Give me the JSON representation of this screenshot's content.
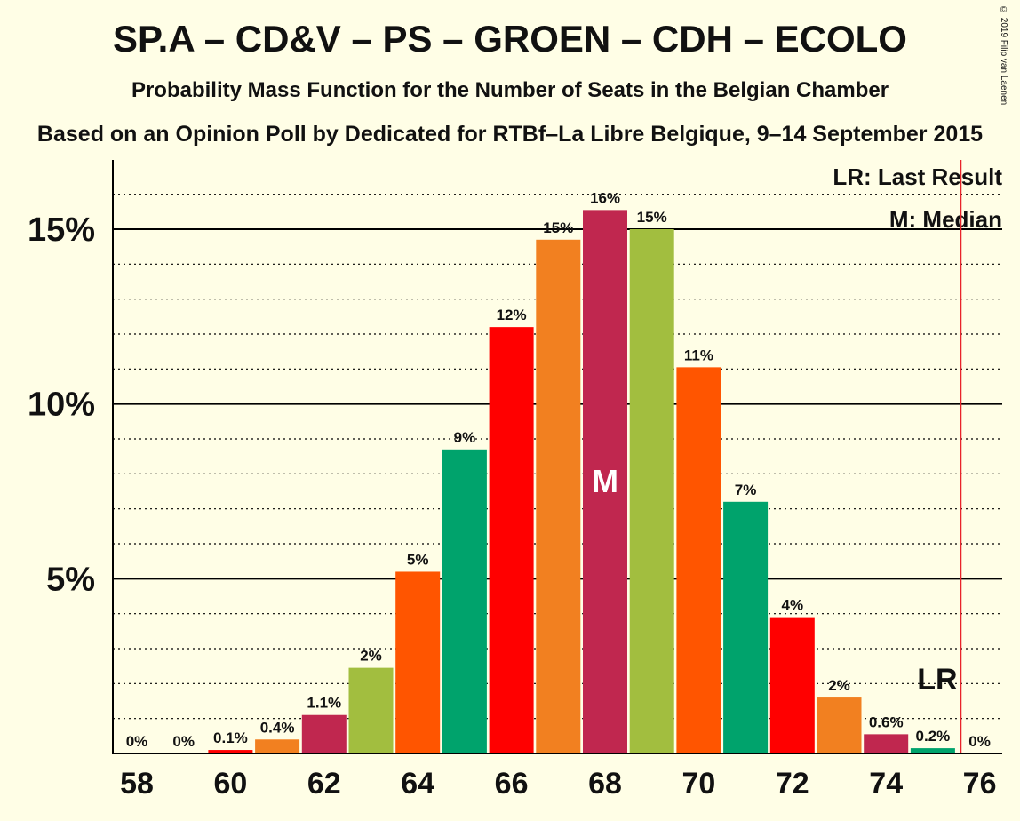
{
  "title": "SP.A – CD&V – PS – GROEN – CDH – ECOLO",
  "subtitle": "Probability Mass Function for the Number of Seats in the Belgian Chamber",
  "subtitle2": "Based on an Opinion Poll by Dedicated for RTBf–La Libre Belgique, 9–14 September 2015",
  "copyright": "© 2019 Filip van Laenen",
  "legend": {
    "lr": "LR: Last Result",
    "median": "M: Median"
  },
  "colors": [
    "#FF0000",
    "#F28020",
    "#C0274F",
    "#A2BE3F",
    "#FF5500",
    "#00A36C"
  ],
  "chart_data": {
    "type": "bar",
    "categories": [
      58,
      59,
      60,
      61,
      62,
      63,
      64,
      65,
      66,
      67,
      68,
      69,
      70,
      71,
      72,
      73,
      74,
      75,
      76
    ],
    "values": [
      0,
      0,
      0.1,
      0.4,
      1.1,
      2.45,
      5.2,
      8.7,
      12.2,
      14.7,
      15.55,
      15.0,
      11.05,
      7.2,
      3.9,
      1.6,
      0.55,
      0.15,
      0
    ],
    "data_labels": [
      "0%",
      "0%",
      "0.1%",
      "0.4%",
      "1.1%",
      "2%",
      "5%",
      "9%",
      "12%",
      "15%",
      "16%",
      "15%",
      "11%",
      "7%",
      "4%",
      "2%",
      "0.6%",
      "0.2%",
      "0%"
    ],
    "bar_colors": [
      "#FF0000",
      "#F28020",
      "#FF0000",
      "#F28020",
      "#C0274F",
      "#A2BE3F",
      "#FF5500",
      "#00A36C",
      "#FF0000",
      "#F28020",
      "#C0274F",
      "#A2BE3F",
      "#FF5500",
      "#00A36C",
      "#FF0000",
      "#F28020",
      "#C0274F",
      "#00A36C",
      "#FF0000"
    ],
    "x_tick_labels": [
      "58",
      "60",
      "62",
      "64",
      "66",
      "68",
      "70",
      "72",
      "74",
      "76"
    ],
    "x_ticks": [
      58,
      60,
      62,
      64,
      66,
      68,
      70,
      72,
      74,
      76
    ],
    "y_tick_labels": [
      "5%",
      "10%",
      "15%"
    ],
    "y_ticks": [
      5,
      10,
      15
    ],
    "ylim": [
      0,
      17
    ],
    "grid": "dotted minor lines every 1%, solid at labelled ticks",
    "median": 68,
    "median_label": "M",
    "last_result": 75.6,
    "last_result_label": "LR"
  }
}
